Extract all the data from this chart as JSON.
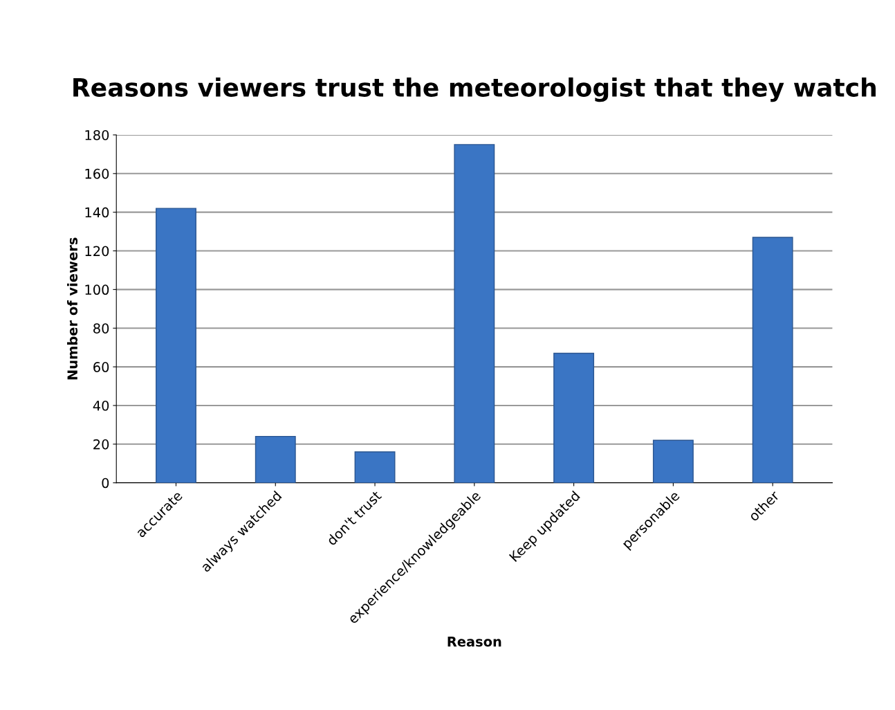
{
  "chart_data": {
    "type": "bar",
    "title": "Reasons viewers trust the meteorologist that they watch",
    "xlabel": "Reason",
    "ylabel": "Number of viewers",
    "categories": [
      "accurate",
      "always watched",
      "don't trust",
      "experience/knowledgeable",
      "Keep updated",
      "personable",
      "other"
    ],
    "values": [
      142,
      24,
      16,
      175,
      67,
      22,
      127
    ],
    "color": "#3a75c4",
    "ylim": [
      0,
      180
    ],
    "yticks": [
      0,
      20,
      40,
      60,
      80,
      100,
      120,
      140,
      160,
      180
    ],
    "grid": "y"
  }
}
